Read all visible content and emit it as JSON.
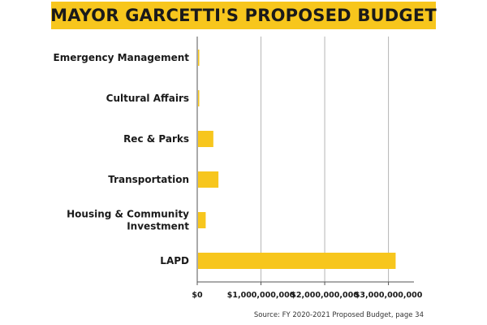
{
  "title": "MAYOR GARCETTI'S PROPOSED BUDGET",
  "source": "Source: FY 2020-2021 Proposed Budget, page 34",
  "colors": {
    "bar": "#f7c61d",
    "banner": "#f7c61d",
    "grid": "#b5b5b5",
    "axis": "#555555"
  },
  "chart_data": {
    "type": "bar",
    "orientation": "horizontal",
    "categories": [
      [
        "Emergency Management"
      ],
      [
        "Cultural Affairs"
      ],
      [
        "Rec & Parks"
      ],
      [
        "Transportation"
      ],
      [
        "Housing & Community",
        "Investment"
      ],
      [
        "LAPD"
      ]
    ],
    "values": [
      3000000,
      15000000,
      240000000,
      320000000,
      120000000,
      3100000000
    ],
    "xlim": [
      0,
      3400000000
    ],
    "xticks": [
      0,
      1000000000,
      2000000000,
      3000000000
    ],
    "xtick_labels": [
      "$0",
      "$1,000,000,000",
      "$2,000,000,000",
      "$3,000,000,000"
    ],
    "grid": true,
    "title": "MAYOR GARCETTI'S PROPOSED BUDGET",
    "xlabel": "",
    "ylabel": ""
  }
}
